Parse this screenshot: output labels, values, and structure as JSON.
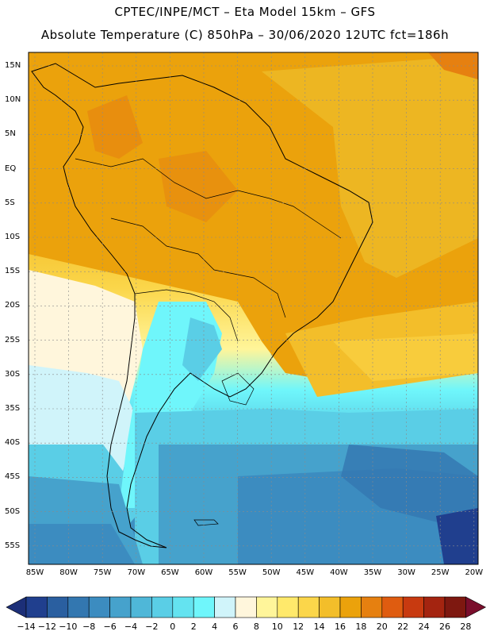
{
  "header": {
    "line1": "CPTEC/INPE/MCT –  Eta Model 15km – GFS",
    "line2": "Absolute Temperature (C) 850hPa – 30/06/2020 12UTC fct=186h"
  },
  "map": {
    "variable": "Absolute Temperature",
    "units": "C",
    "level": "850hPa",
    "lat_labels": [
      "15N",
      "10N",
      "5N",
      "EQ",
      "5S",
      "10S",
      "15S",
      "20S",
      "25S",
      "30S",
      "35S",
      "40S",
      "45S",
      "50S",
      "55S"
    ],
    "lon_labels": [
      "85W",
      "80W",
      "75W",
      "70W",
      "65W",
      "60W",
      "55W",
      "50W",
      "45W",
      "40W",
      "35W",
      "30W",
      "25W",
      "20W"
    ]
  },
  "colorbar": {
    "labels": [
      "-14",
      "-12",
      "-10",
      "-8",
      "-6",
      "-4",
      "-2",
      "0",
      "2",
      "4",
      "6",
      "8",
      "10",
      "12",
      "14",
      "16",
      "18",
      "20",
      "22",
      "24",
      "26",
      "28"
    ],
    "colors": [
      "#203f8e",
      "#2a5fa0",
      "#3377b0",
      "#3c8cc0",
      "#46a2cc",
      "#4fb7d8",
      "#5acee6",
      "#64e3f0",
      "#6ff6fb",
      "#d0f4fa",
      "#fff6dc",
      "#fff59a",
      "#ffe96b",
      "#fbd64a",
      "#f3be2a",
      "#eba20c",
      "#e68010",
      "#df5c10",
      "#c83a10",
      "#a42410",
      "#7e1810"
    ],
    "under_color": "#1c2f78",
    "over_color": "#7a0e2c"
  }
}
